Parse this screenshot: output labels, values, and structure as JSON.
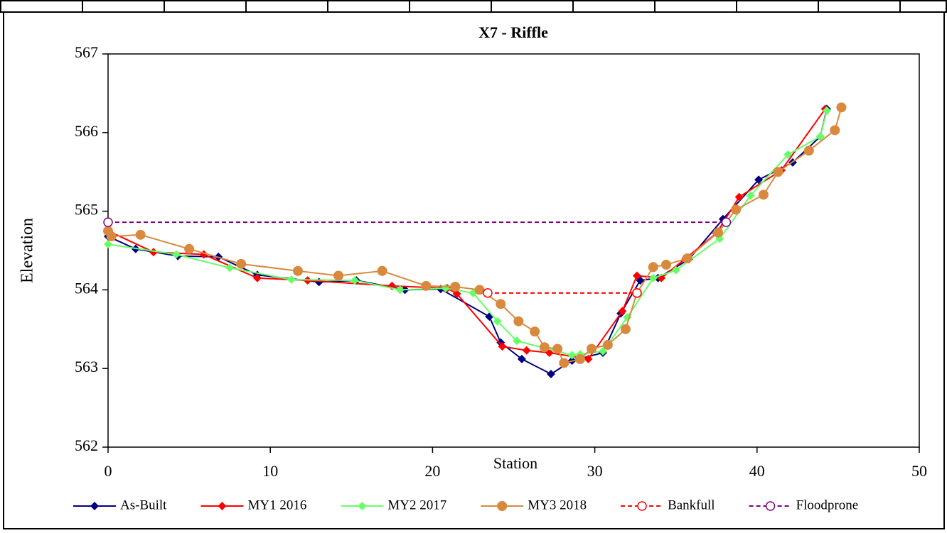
{
  "chart_data": {
    "type": "line",
    "title": "X7 - Riffle",
    "x_label": "Station",
    "y_label": "Elevation",
    "xlim": [
      0,
      50
    ],
    "xticks": [
      0,
      10,
      20,
      30,
      40,
      50
    ],
    "ylim": [
      562,
      567
    ],
    "yticks": [
      562,
      563,
      564,
      565,
      566,
      567
    ],
    "legend": "bottom",
    "series": [
      {
        "name": "As-Built",
        "color": "#000080",
        "marker": "diamond",
        "dashed": false,
        "x": [
          0,
          1.7,
          4.3,
          6.8,
          9.2,
          13,
          15.3,
          18.3,
          20.5,
          23.5,
          24.2,
          25.5,
          27.3,
          28.6,
          30.5,
          31.6,
          32.8,
          33.9,
          35.8,
          37.9,
          40.1,
          42.2,
          43.9,
          44.3
        ],
        "values": [
          564.68,
          564.52,
          564.43,
          564.42,
          564.19,
          564.1,
          564.12,
          564.0,
          564.01,
          563.66,
          563.33,
          563.12,
          562.93,
          563.1,
          563.2,
          563.7,
          564.12,
          564.15,
          564.39,
          564.9,
          565.4,
          565.62,
          565.95,
          566.3
        ]
      },
      {
        "name": "MY1 2016",
        "color": "#ff0000",
        "marker": "diamond",
        "dashed": false,
        "x": [
          0,
          2.8,
          5.9,
          9.2,
          12.3,
          17.5,
          20.9,
          21.5,
          24.3,
          25.8,
          27.2,
          29.6,
          31.7,
          32.6,
          34.1,
          35.6,
          37.5,
          38.9,
          41.5,
          44.2
        ],
        "values": [
          564.75,
          564.48,
          564.45,
          564.15,
          564.12,
          564.05,
          564.02,
          563.95,
          563.28,
          563.23,
          563.2,
          563.12,
          563.73,
          564.18,
          564.15,
          564.4,
          564.72,
          565.18,
          565.52,
          566.3
        ]
      },
      {
        "name": "MY2 2017",
        "color": "#66ff66",
        "marker": "diamond",
        "dashed": false,
        "x": [
          0,
          4.2,
          7.5,
          11.3,
          15.2,
          18,
          20.8,
          22.5,
          24,
          25.2,
          28.6,
          29.1,
          30.5,
          32,
          33.6,
          35,
          37.7,
          39.6,
          41.9,
          43.9,
          44.3
        ],
        "values": [
          564.58,
          564.45,
          564.28,
          564.13,
          564.12,
          564.0,
          564.02,
          563.96,
          563.6,
          563.35,
          563.17,
          563.18,
          563.22,
          563.65,
          564.15,
          564.25,
          564.65,
          565.2,
          565.72,
          565.95,
          566.28
        ]
      },
      {
        "name": "MY3 2018",
        "color": "#d9893d",
        "marker": "circle",
        "dashed": false,
        "x": [
          0,
          0.2,
          2,
          5,
          8.2,
          11.7,
          14.2,
          16.9,
          19.6,
          21.4,
          22.9,
          24.2,
          25.3,
          26.3,
          26.9,
          27.7,
          28.1,
          29.1,
          29.8,
          30.8,
          31.9,
          32.6,
          33.6,
          34.4,
          35.7,
          37.6,
          38.7,
          40.4,
          41.3,
          43.2,
          44.8,
          45.2
        ],
        "values": [
          564.75,
          564.68,
          564.7,
          564.52,
          564.33,
          564.24,
          564.18,
          564.24,
          564.05,
          564.04,
          564.0,
          563.82,
          563.6,
          563.47,
          563.27,
          563.25,
          563.07,
          563.12,
          563.25,
          563.3,
          563.5,
          563.96,
          564.29,
          564.32,
          564.4,
          564.73,
          565.02,
          565.21,
          565.5,
          565.77,
          566.03,
          566.32
        ]
      },
      {
        "name": "Bankfull",
        "color": "#ff0000",
        "marker": "open-circle",
        "dashed": true,
        "x": [
          23.4,
          32.6
        ],
        "values": [
          563.96,
          563.96
        ]
      },
      {
        "name": "Floodprone",
        "color": "#800080",
        "marker": "open-circle",
        "dashed": true,
        "x": [
          0,
          38.1
        ],
        "values": [
          564.86,
          564.86
        ]
      }
    ]
  }
}
